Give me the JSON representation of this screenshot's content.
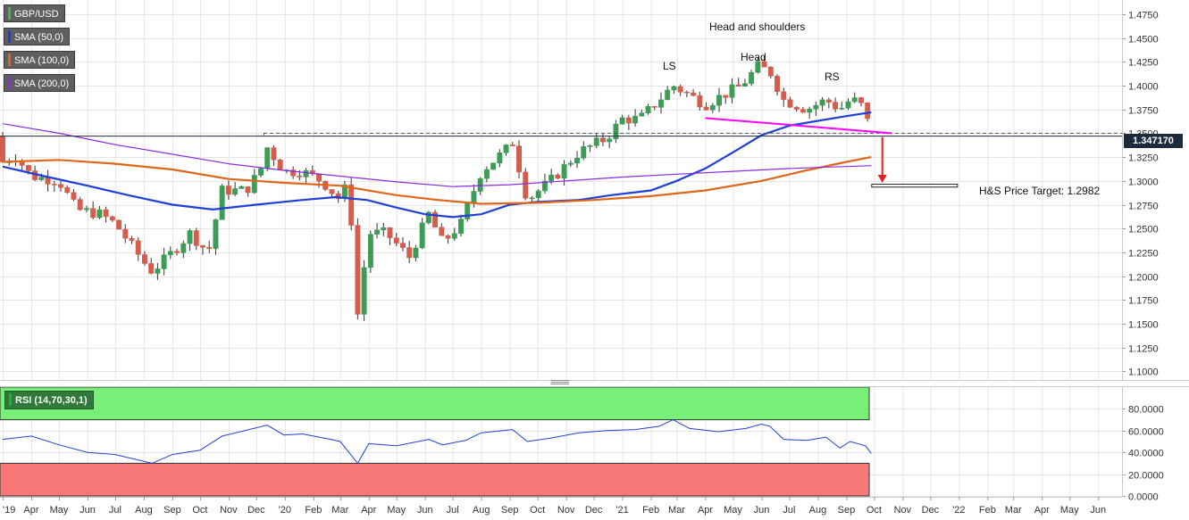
{
  "legend": [
    {
      "label": "GBP/USD",
      "color": "#4caf50"
    },
    {
      "label": "SMA (50,0)",
      "color": "#1f3fd6"
    },
    {
      "label": "SMA (100,0)",
      "color": "#e0661a"
    },
    {
      "label": "SMA (200,0)",
      "color": "#8a2be2"
    }
  ],
  "annotations": {
    "pattern_title": "Head and shoulders",
    "left_shoulder": "LS",
    "head": "Head",
    "right_shoulder": "RS",
    "target_label": "H&S Price Target: 1.2982"
  },
  "last_price": "1.347170",
  "rsi_legend": "RSI (14,70,30,1)",
  "colors": {
    "up": "#3d9c56",
    "down": "#d65d4c",
    "neckline": "#ff00ff",
    "arrow": "#e81f1f",
    "rsi_line": "#1f3fd6",
    "overbought_zone": "#78f078",
    "oversold_zone": "#f87878"
  },
  "chart_data": [
    {
      "type": "candlestick",
      "title": "GBP/USD",
      "timeframe": "weekly",
      "x_tick_labels": [
        "'19",
        "Apr",
        "May",
        "Jun",
        "Jul",
        "Aug",
        "Sep",
        "Oct",
        "Nov",
        "Dec",
        "'20",
        "Feb",
        "Mar",
        "Apr",
        "May",
        "Jun",
        "Jul",
        "Aug",
        "Sep",
        "Oct",
        "Nov",
        "Dec",
        "'21",
        "Feb",
        "Mar",
        "Apr",
        "May",
        "Jun",
        "Jul",
        "Aug",
        "Sep",
        "Oct",
        "Nov",
        "Dec",
        "'22",
        "Feb",
        "Mar",
        "Apr",
        "May",
        "Jun"
      ],
      "y_ticks": [
        "1.1000",
        "1.1250",
        "1.1500",
        "1.1750",
        "1.2000",
        "1.2250",
        "1.2500",
        "1.2750",
        "1.3000",
        "1.3250",
        "1.3500",
        "1.3750",
        "1.4000",
        "1.4250",
        "1.4500",
        "1.4750"
      ],
      "ylim": [
        1.092,
        1.488
      ],
      "x_range": [
        "2019-03-01",
        "2022-06-25"
      ],
      "close_path": [
        [
          "2019-03-01",
          1.32
        ],
        [
          "2019-03-15",
          1.326
        ],
        [
          "2019-04-01",
          1.305
        ],
        [
          "2019-05-01",
          1.3
        ],
        [
          "2019-05-20",
          1.27
        ],
        [
          "2019-06-15",
          1.265
        ],
        [
          "2019-07-01",
          1.255
        ],
        [
          "2019-08-01",
          1.215
        ],
        [
          "2019-08-10",
          1.205
        ],
        [
          "2019-09-01",
          1.225
        ],
        [
          "2019-09-20",
          1.245
        ],
        [
          "2019-10-10",
          1.225
        ],
        [
          "2019-10-25",
          1.29
        ],
        [
          "2019-11-20",
          1.29
        ],
        [
          "2019-12-05",
          1.31
        ],
        [
          "2019-12-13",
          1.335
        ],
        [
          "2019-12-31",
          1.31
        ],
        [
          "2020-01-20",
          1.31
        ],
        [
          "2020-02-10",
          1.3
        ],
        [
          "2020-03-01",
          1.28
        ],
        [
          "2020-03-10",
          1.3
        ],
        [
          "2020-03-20",
          1.16
        ],
        [
          "2020-04-01",
          1.245
        ],
        [
          "2020-04-20",
          1.245
        ],
        [
          "2020-05-15",
          1.22
        ],
        [
          "2020-06-05",
          1.265
        ],
        [
          "2020-06-20",
          1.235
        ],
        [
          "2020-07-10",
          1.255
        ],
        [
          "2020-08-01",
          1.31
        ],
        [
          "2020-08-25",
          1.33
        ],
        [
          "2020-09-04",
          1.34
        ],
        [
          "2020-09-20",
          1.28
        ],
        [
          "2020-10-15",
          1.3
        ],
        [
          "2020-11-15",
          1.33
        ],
        [
          "2020-12-15",
          1.345
        ],
        [
          "2021-01-01",
          1.365
        ],
        [
          "2021-01-20",
          1.365
        ],
        [
          "2021-02-10",
          1.385
        ],
        [
          "2021-02-25",
          1.4
        ],
        [
          "2021-03-15",
          1.39
        ],
        [
          "2021-04-01",
          1.38
        ],
        [
          "2021-04-20",
          1.39
        ],
        [
          "2021-05-10",
          1.4
        ],
        [
          "2021-05-28",
          1.42
        ],
        [
          "2021-06-10",
          1.415
        ],
        [
          "2021-06-25",
          1.385
        ],
        [
          "2021-07-20",
          1.375
        ],
        [
          "2021-08-10",
          1.385
        ],
        [
          "2021-08-25",
          1.375
        ],
        [
          "2021-09-05",
          1.385
        ],
        [
          "2021-09-15",
          1.383
        ],
        [
          "2021-09-22",
          1.37
        ],
        [
          "2021-09-28",
          1.347
        ]
      ],
      "series": [
        {
          "name": "SMA (50,0)",
          "points": [
            [
              "2019-03-01",
              1.315
            ],
            [
              "2019-04-15",
              1.305
            ],
            [
              "2019-06-01",
              1.295
            ],
            [
              "2019-07-15",
              1.285
            ],
            [
              "2019-09-01",
              1.275
            ],
            [
              "2019-10-15",
              1.27
            ],
            [
              "2019-12-01",
              1.275
            ],
            [
              "2020-01-20",
              1.28
            ],
            [
              "2020-02-25",
              1.283
            ],
            [
              "2020-03-30",
              1.28
            ],
            [
              "2020-05-01",
              1.272
            ],
            [
              "2020-06-01",
              1.265
            ],
            [
              "2020-07-01",
              1.262
            ],
            [
              "2020-08-01",
              1.265
            ],
            [
              "2020-09-01",
              1.275
            ],
            [
              "2020-10-01",
              1.278
            ],
            [
              "2020-11-15",
              1.28
            ],
            [
              "2020-12-20",
              1.285
            ],
            [
              "2021-02-01",
              1.29
            ],
            [
              "2021-03-01",
              1.3
            ],
            [
              "2021-04-01",
              1.313
            ],
            [
              "2021-05-01",
              1.33
            ],
            [
              "2021-06-01",
              1.348
            ],
            [
              "2021-07-01",
              1.358
            ],
            [
              "2021-08-01",
              1.363
            ],
            [
              "2021-09-01",
              1.368
            ],
            [
              "2021-09-28",
              1.372
            ]
          ]
        },
        {
          "name": "SMA (100,0)",
          "points": [
            [
              "2019-03-01",
              1.32
            ],
            [
              "2019-05-01",
              1.322
            ],
            [
              "2019-07-01",
              1.318
            ],
            [
              "2019-09-01",
              1.312
            ],
            [
              "2019-11-01",
              1.302
            ],
            [
              "2020-01-01",
              1.298
            ],
            [
              "2020-03-01",
              1.295
            ],
            [
              "2020-05-01",
              1.285
            ],
            [
              "2020-06-15",
              1.28
            ],
            [
              "2020-08-01",
              1.276
            ],
            [
              "2020-10-01",
              1.277
            ],
            [
              "2020-12-01",
              1.28
            ],
            [
              "2021-02-01",
              1.284
            ],
            [
              "2021-04-01",
              1.29
            ],
            [
              "2021-06-01",
              1.3
            ],
            [
              "2021-07-15",
              1.31
            ],
            [
              "2021-09-01",
              1.32
            ],
            [
              "2021-09-28",
              1.325
            ]
          ]
        },
        {
          "name": "SMA (200,0)",
          "points": [
            [
              "2019-03-01",
              1.36
            ],
            [
              "2019-05-01",
              1.35
            ],
            [
              "2019-07-01",
              1.338
            ],
            [
              "2019-09-01",
              1.328
            ],
            [
              "2019-11-01",
              1.318
            ],
            [
              "2020-01-01",
              1.311
            ],
            [
              "2020-03-01",
              1.305
            ],
            [
              "2020-05-01",
              1.299
            ],
            [
              "2020-07-01",
              1.294
            ],
            [
              "2020-09-01",
              1.296
            ],
            [
              "2020-11-01",
              1.3
            ],
            [
              "2021-01-01",
              1.304
            ],
            [
              "2021-03-01",
              1.307
            ],
            [
              "2021-05-01",
              1.31
            ],
            [
              "2021-07-01",
              1.313
            ],
            [
              "2021-09-28",
              1.316
            ]
          ]
        }
      ],
      "annotations": [
        {
          "text": "Head and shoulders",
          "x": "2021-06-01",
          "y": 1.4595
        },
        {
          "text": "LS",
          "x": "2021-02-20",
          "y": 1.4245
        },
        {
          "text": "Head",
          "x": "2021-06-01",
          "y": 1.4395
        },
        {
          "text": "RS",
          "x": "2021-08-25",
          "y": 1.4135
        },
        {
          "text": "H&S Price Target: 1.2982",
          "x": "2021-12-10",
          "y": 1.2985
        }
      ],
      "levels": {
        "dashed_resistance": 1.35,
        "horizontal_reference": 1.347,
        "neckline": [
          [
            "2021-04-01",
            1.366
          ],
          [
            "2021-10-20",
            1.35
          ]
        ],
        "target_box": [
          [
            "2021-09-28",
            1.2935
          ],
          [
            "2021-12-30",
            1.2965
          ]
        ],
        "target_arrow": {
          "x": "2021-10-10",
          "from": 1.346,
          "to": 1.298
        },
        "last_price": 1.34717
      }
    },
    {
      "type": "line",
      "title": "RSI (14,70,30,1)",
      "y_ticks": [
        "0.0000",
        "20.0000",
        "40.0000",
        "60.0000",
        "80.0000"
      ],
      "ylim": [
        0,
        100
      ],
      "overbought": 70,
      "oversold": 30,
      "series": [
        {
          "name": "RSI (14,70,30,1)",
          "points": [
            [
              "2019-03-01",
              52
            ],
            [
              "2019-04-01",
              55
            ],
            [
              "2019-05-01",
              47
            ],
            [
              "2019-06-01",
              40
            ],
            [
              "2019-07-01",
              38
            ],
            [
              "2019-08-10",
              30
            ],
            [
              "2019-09-01",
              38
            ],
            [
              "2019-10-01",
              42
            ],
            [
              "2019-10-25",
              55
            ],
            [
              "2019-12-13",
              65
            ],
            [
              "2019-12-31",
              56
            ],
            [
              "2020-01-20",
              57
            ],
            [
              "2020-02-20",
              52
            ],
            [
              "2020-03-01",
              50
            ],
            [
              "2020-03-20",
              30
            ],
            [
              "2020-04-01",
              48
            ],
            [
              "2020-05-01",
              46
            ],
            [
              "2020-06-05",
              52
            ],
            [
              "2020-06-20",
              47
            ],
            [
              "2020-07-15",
              51
            ],
            [
              "2020-08-01",
              58
            ],
            [
              "2020-09-04",
              61
            ],
            [
              "2020-09-20",
              50
            ],
            [
              "2020-10-15",
              53
            ],
            [
              "2020-11-15",
              58
            ],
            [
              "2020-12-15",
              60
            ],
            [
              "2021-01-15",
              61
            ],
            [
              "2021-02-10",
              64
            ],
            [
              "2021-02-25",
              70
            ],
            [
              "2021-03-15",
              62
            ],
            [
              "2021-04-15",
              59
            ],
            [
              "2021-05-15",
              62
            ],
            [
              "2021-06-01",
              66
            ],
            [
              "2021-06-10",
              64
            ],
            [
              "2021-06-25",
              52
            ],
            [
              "2021-07-20",
              51
            ],
            [
              "2021-08-10",
              54
            ],
            [
              "2021-08-25",
              44
            ],
            [
              "2021-09-05",
              50
            ],
            [
              "2021-09-22",
              46
            ],
            [
              "2021-09-28",
              39
            ]
          ]
        }
      ]
    }
  ]
}
